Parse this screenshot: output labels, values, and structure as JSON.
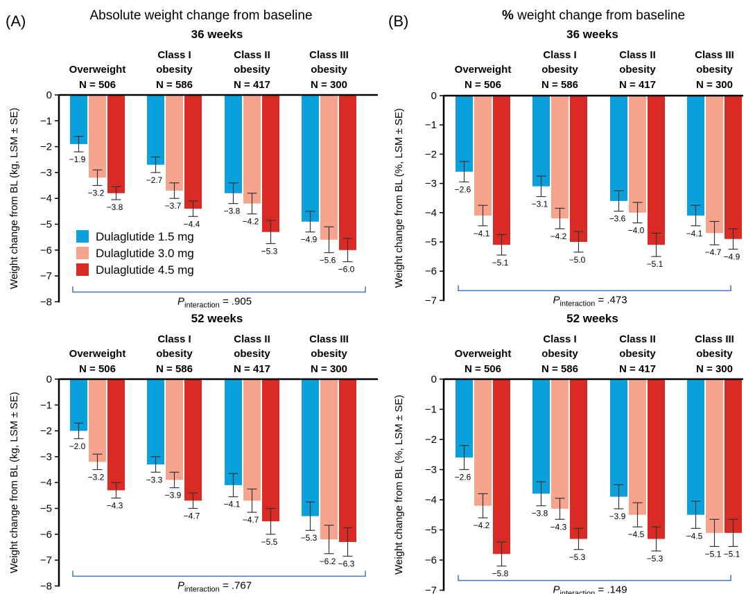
{
  "colors": {
    "dula_1_5": "#0aa0dc",
    "dula_3_0": "#f7a48e",
    "dula_4_5": "#d92b23",
    "bracket": "#4472c4"
  },
  "legend": [
    "Dulaglutide 1.5 mg",
    "Dulaglutide 3.0 mg",
    "Dulaglutide 4.5 mg"
  ],
  "panels": {
    "A": {
      "letter": "(A)",
      "title": "Absolute weight change from baseline"
    },
    "B": {
      "letter": "(B)",
      "title": "weight change from baseline",
      "title_prefix": "%"
    }
  },
  "p_label": "P",
  "p_sub": "interaction",
  "chart_data": [
    {
      "type": "bar",
      "id": "A36",
      "time_label": "36 weeks",
      "ylabel": "Weight change from BL (kg, LSM ± SE)",
      "ylim": [
        -8,
        0
      ],
      "yticks": [
        0,
        -1,
        -2,
        -3,
        -4,
        -5,
        -6,
        -7,
        -8
      ],
      "groups": [
        {
          "line1": "",
          "line2": "Overweight",
          "n": "N = 506"
        },
        {
          "line1": "Class I",
          "line2": "obesity",
          "n": "N = 586"
        },
        {
          "line1": "Class II",
          "line2": "obesity",
          "n": "N = 417"
        },
        {
          "line1": "Class III",
          "line2": "obesity",
          "n": "N = 300"
        }
      ],
      "series": [
        {
          "name": "Dulaglutide 1.5 mg",
          "values": [
            -1.9,
            -2.7,
            -3.8,
            -4.9
          ],
          "se": [
            0.3,
            0.3,
            0.4,
            0.4
          ],
          "labels": [
            "−1.9",
            "−2.7",
            "−3.8",
            "−4.9"
          ]
        },
        {
          "name": "Dulaglutide 3.0 mg",
          "values": [
            -3.2,
            -3.7,
            -4.2,
            -5.6
          ],
          "se": [
            0.3,
            0.3,
            0.4,
            0.5
          ],
          "labels": [
            "−3.2",
            "−3.7",
            "−4.2",
            "−5.6"
          ]
        },
        {
          "name": "Dulaglutide 4.5 mg",
          "values": [
            -3.8,
            -4.4,
            -5.3,
            -6.0
          ],
          "se": [
            0.25,
            0.3,
            0.45,
            0.45
          ],
          "labels": [
            "−3.8",
            "−4.4",
            "−5.3",
            "−6.0"
          ]
        }
      ],
      "p_value": "= .905"
    },
    {
      "type": "bar",
      "id": "B36",
      "time_label": "36 weeks",
      "ylabel": "Weight change from BL (%, LSM ± SE)",
      "ylim": [
        -7,
        0
      ],
      "yticks": [
        0,
        -1,
        -2,
        -3,
        -4,
        -5,
        -6,
        -7
      ],
      "groups": [
        {
          "line1": "",
          "line2": "Overweight",
          "n": "N = 506"
        },
        {
          "line1": "Class I",
          "line2": "obesity",
          "n": "N = 586"
        },
        {
          "line1": "Class II",
          "line2": "obesity",
          "n": "N = 417"
        },
        {
          "line1": "Class III",
          "line2": "obesity",
          "n": "N = 300"
        }
      ],
      "series": [
        {
          "name": "Dulaglutide 1.5 mg",
          "values": [
            -2.6,
            -3.1,
            -3.6,
            -4.1
          ],
          "se": [
            0.35,
            0.35,
            0.35,
            0.35
          ],
          "labels": [
            "−2.6",
            "−3.1",
            "−3.6",
            "−4.1"
          ]
        },
        {
          "name": "Dulaglutide 3.0 mg",
          "values": [
            -4.1,
            -4.2,
            -4.0,
            -4.7
          ],
          "se": [
            0.35,
            0.35,
            0.35,
            0.4
          ],
          "labels": [
            "−4.1",
            "−4.2",
            "−4.0",
            "−4.7"
          ]
        },
        {
          "name": "Dulaglutide 4.5 mg",
          "values": [
            -5.1,
            -5.0,
            -5.1,
            -4.9
          ],
          "se": [
            0.35,
            0.35,
            0.4,
            0.35
          ],
          "labels": [
            "−5.1",
            "−5.0",
            "−5.1",
            "−4.9"
          ]
        }
      ],
      "p_value": "= .473"
    },
    {
      "type": "bar",
      "id": "A52",
      "time_label": "52 weeks",
      "ylabel": "Weight change from BL (kg, LSM ± SE)",
      "ylim": [
        -8,
        0
      ],
      "yticks": [
        0,
        -1,
        -2,
        -3,
        -4,
        -5,
        -6,
        -7,
        -8
      ],
      "groups": [
        {
          "line1": "",
          "line2": "Overweight",
          "n": "N = 506"
        },
        {
          "line1": "Class I",
          "line2": "obesity",
          "n": "N = 586"
        },
        {
          "line1": "Class II",
          "line2": "obesity",
          "n": "N = 417"
        },
        {
          "line1": "Class III",
          "line2": "obesity",
          "n": "N = 300"
        }
      ],
      "series": [
        {
          "name": "Dulaglutide 1.5 mg",
          "values": [
            -2.0,
            -3.3,
            -4.1,
            -5.3
          ],
          "se": [
            0.3,
            0.3,
            0.45,
            0.55
          ],
          "labels": [
            "−2.0",
            "−3.3",
            "−4.1",
            "−5.3"
          ]
        },
        {
          "name": "Dulaglutide 3.0 mg",
          "values": [
            -3.2,
            -3.9,
            -4.7,
            -6.2
          ],
          "se": [
            0.3,
            0.3,
            0.45,
            0.55
          ],
          "labels": [
            "−3.2",
            "−3.9",
            "−4.7",
            "−6.2"
          ]
        },
        {
          "name": "Dulaglutide 4.5 mg",
          "values": [
            -4.3,
            -4.7,
            -5.5,
            -6.3
          ],
          "se": [
            0.3,
            0.3,
            0.5,
            0.55
          ],
          "labels": [
            "−4.3",
            "−4.7",
            "−5.5",
            "−6.3"
          ]
        }
      ],
      "p_value": "= .767"
    },
    {
      "type": "bar",
      "id": "B52",
      "time_label": "52 weeks",
      "ylabel": "Weight change from BL (%, LSM ± SE)",
      "ylim": [
        -7,
        0
      ],
      "yticks": [
        0,
        -1,
        -2,
        -3,
        -4,
        -5,
        -6,
        -7
      ],
      "groups": [
        {
          "line1": "",
          "line2": "Overweight",
          "n": "N = 506"
        },
        {
          "line1": "Class I",
          "line2": "obesity",
          "n": "N = 586"
        },
        {
          "line1": "Class II",
          "line2": "obesity",
          "n": "N = 417"
        },
        {
          "line1": "Class III",
          "line2": "obesity",
          "n": "N = 300"
        }
      ],
      "series": [
        {
          "name": "Dulaglutide 1.5 mg",
          "values": [
            -2.6,
            -3.8,
            -3.9,
            -4.5
          ],
          "se": [
            0.4,
            0.4,
            0.4,
            0.45
          ],
          "labels": [
            "−2.6",
            "−3.8",
            "−3.9",
            "−4.5"
          ]
        },
        {
          "name": "Dulaglutide 3.0 mg",
          "values": [
            -4.2,
            -4.3,
            -4.5,
            -5.1
          ],
          "se": [
            0.4,
            0.35,
            0.4,
            0.45
          ],
          "labels": [
            "−4.2",
            "−4.3",
            "−4.5",
            "−5.1"
          ]
        },
        {
          "name": "Dulaglutide 4.5 mg",
          "values": [
            -5.8,
            -5.3,
            -5.3,
            -5.1
          ],
          "se": [
            0.4,
            0.35,
            0.4,
            0.45
          ],
          "labels": [
            "−5.8",
            "−5.3",
            "−5.3",
            "−5.1"
          ]
        }
      ],
      "p_value": "= .149"
    }
  ]
}
